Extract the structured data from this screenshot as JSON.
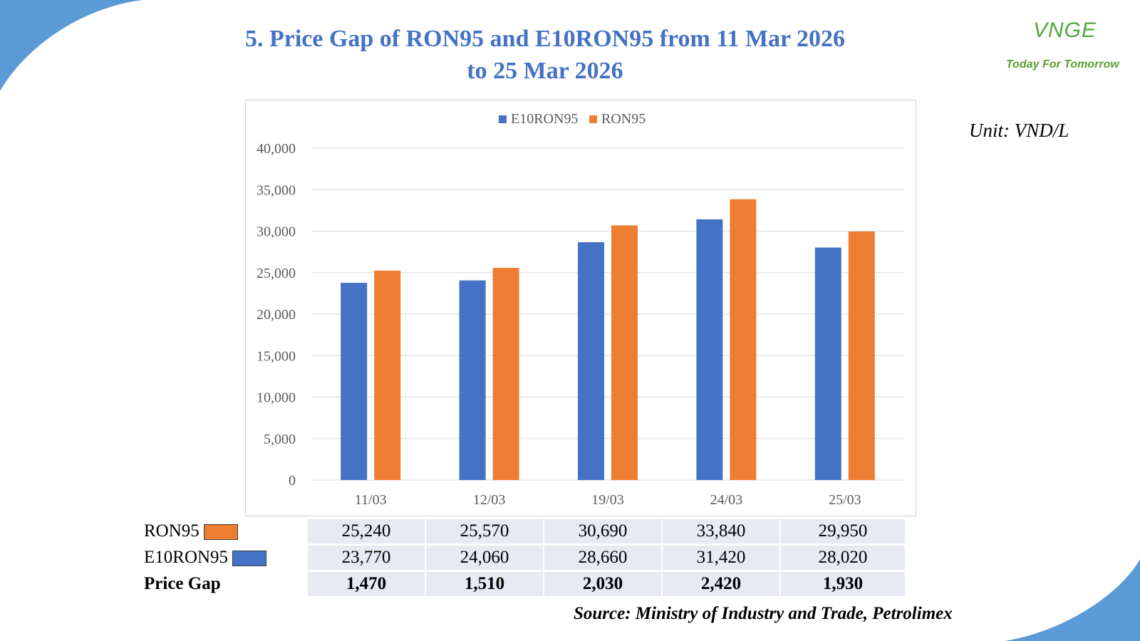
{
  "title": {
    "line1": "5. Price Gap of RON95 and E10RON95 from 11 Mar 2026",
    "line2": "to 25 Mar 2026"
  },
  "logo": {
    "mark": "VNGE",
    "tagline": "Today For Tomorrow",
    "color": "#4fa83d"
  },
  "unit": "Unit: VND/L",
  "colors": {
    "e10": "#4472c4",
    "ron": "#ed7d31",
    "title": "#4472c4",
    "accent": "#5b9bd5"
  },
  "chart_data": {
    "type": "bar",
    "categories": [
      "11/03",
      "12/03",
      "19/03",
      "24/03",
      "25/03"
    ],
    "series": [
      {
        "name": "E10RON95",
        "values": [
          23770,
          24060,
          28660,
          31420,
          28020
        ]
      },
      {
        "name": "RON95",
        "values": [
          25240,
          25570,
          30690,
          33840,
          29950
        ]
      }
    ],
    "ylim": [
      0,
      40000
    ],
    "yticks": [
      "0",
      "5,000",
      "10,000",
      "15,000",
      "20,000",
      "25,000",
      "30,000",
      "35,000",
      "40,000"
    ],
    "grid": true,
    "legend": "top-center"
  },
  "table": {
    "rows": [
      {
        "label": "RON95",
        "swatch": "ron",
        "values": [
          "25,240",
          "25,570",
          "30,690",
          "33,840",
          "29,950"
        ]
      },
      {
        "label": "E10RON95",
        "swatch": "e10",
        "values": [
          "23,770",
          "24,060",
          "28,660",
          "31,420",
          "28,020"
        ]
      },
      {
        "label": "Price Gap",
        "values": [
          "1,470",
          "1,510",
          "2,030",
          "2,420",
          "1,930"
        ]
      }
    ]
  },
  "source": "Source: Ministry of Industry and Trade, Petrolimex"
}
